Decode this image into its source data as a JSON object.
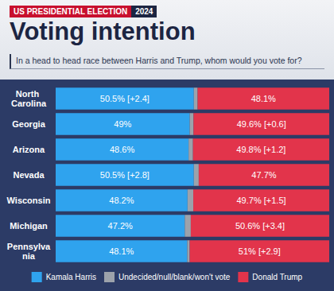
{
  "chart_data": {
    "type": "bar",
    "kicker": [
      "US PRESIDENTIAL ELECTION",
      "2024"
    ],
    "title": "Voting intention",
    "subtitle": "In a head to head race between Harris and Trump, whom would you vote for?",
    "orientation": "horizontal",
    "stacked": true,
    "grid": false,
    "legend": "bottom",
    "tick_labels": "y",
    "categories": [
      "North Carolina",
      "Georgia",
      "Arizona",
      "Nevada",
      "Wisconsin",
      "Michigan",
      "Pennsylvania"
    ],
    "xlim": [
      0,
      100
    ],
    "series": [
      {
        "name": "Kamala Harris",
        "color": "#2fa3ee",
        "data_labels": true,
        "values": [
          50.5,
          49,
          48.6,
          50.5,
          48.2,
          47.2,
          48.1
        ],
        "value_labels": [
          "50.5% [+2.4]",
          "49%",
          "48.6%",
          "50.5% [+2.8]",
          "48.2%",
          "47.2%",
          "48.1%"
        ]
      },
      {
        "name": "Undecided/null/blank/won't vote",
        "color": "#9ca2ab",
        "data_labels": false,
        "values": [
          1.4,
          1.4,
          1.6,
          1.8,
          2.1,
          2.2,
          0.9
        ]
      },
      {
        "name": "Donald Trump",
        "color": "#e2344b",
        "data_labels": true,
        "values": [
          48.1,
          49.6,
          49.8,
          47.7,
          49.7,
          50.6,
          51
        ],
        "value_labels": [
          "48.1%",
          "49.6% [+0.6]",
          "49.8% [+1.2]",
          "47.7%",
          "49.7% [+1.5]",
          "50.6% [+3.4]",
          "51% [+2.9]"
        ]
      }
    ]
  }
}
